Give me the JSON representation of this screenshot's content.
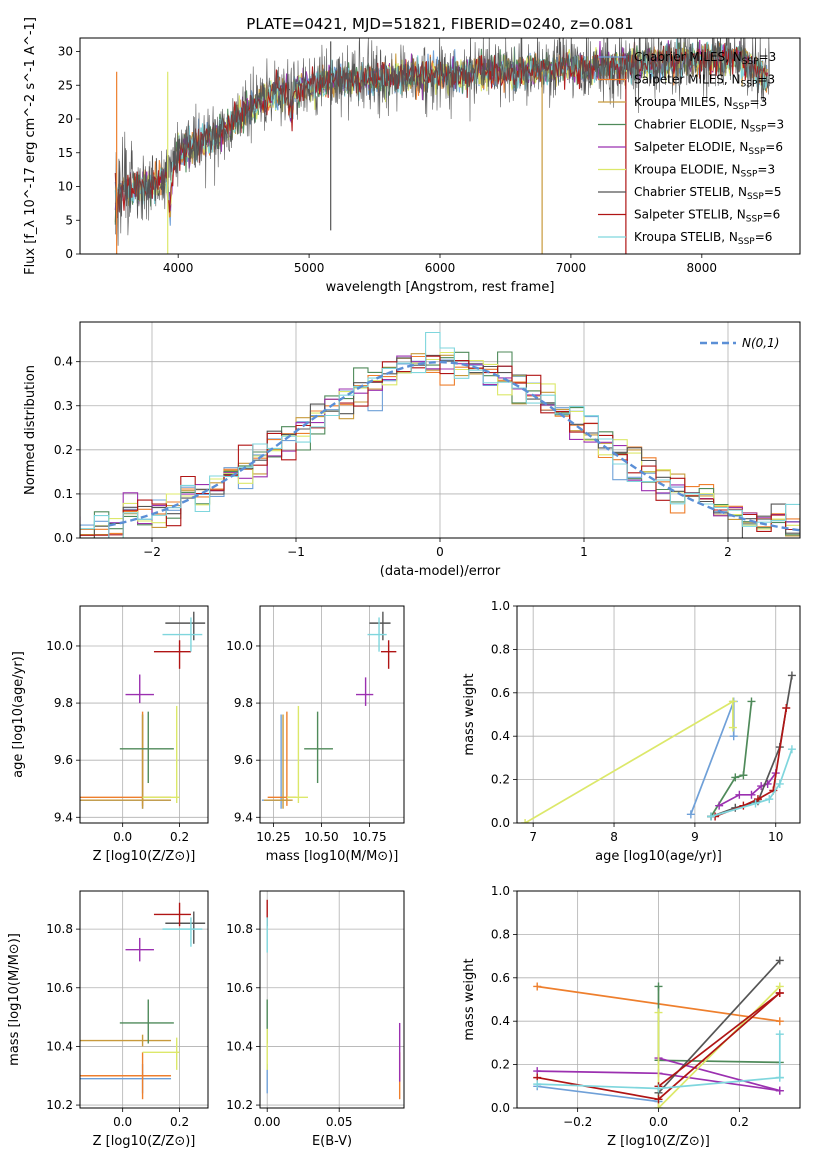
{
  "figure": {
    "title": "PLATE=0421, MJD=51821, FIBERID=0240, z=0.081"
  },
  "series_names": [
    "Chabrier MILES, N_SSP=3",
    "Salpeter MILES, N_SSP=3",
    "Kroupa MILES, N_SSP=3",
    "Chabrier ELODIE, N_SSP=3",
    "Salpeter ELODIE, N_SSP=6",
    "Kroupa ELODIE, N_SSP=3",
    "Chabrier STELIB, N_SSP=5",
    "Salpeter STELIB, N_SSP=6",
    "Kroupa STELIB, N_SSP=6"
  ],
  "series_colors": [
    "#6fa0d8",
    "#ee7f2d",
    "#c89a3c",
    "#4f8a5a",
    "#9b30b0",
    "#dce86a",
    "#555555",
    "#b01515",
    "#7fd6dd"
  ],
  "chart_data": [
    {
      "type": "line",
      "panel": "spectrum",
      "xlabel": "wavelength [Angstrom, rest frame]",
      "ylabel": "Flux [f_λ 10^-17 erg cm^-2 s^-1 A^-1]",
      "xlim": [
        3250,
        8750
      ],
      "ylim": [
        0,
        32
      ],
      "xticks": [
        "4000",
        "5000",
        "6000",
        "7000",
        "8000"
      ],
      "yticks": [
        "0",
        "5",
        "10",
        "15",
        "20",
        "25",
        "30"
      ],
      "continuum_x": [
        3500,
        3600,
        3800,
        3950,
        4000,
        4100,
        4300,
        4500,
        4700,
        4900,
        5100,
        5300,
        5500,
        5700,
        5900,
        6100,
        6300,
        6500,
        6700,
        6900,
        7100,
        7300,
        7500,
        7700,
        7900,
        8100,
        8300,
        8500
      ],
      "continuum_y": [
        8,
        9.5,
        10,
        12,
        15,
        16,
        17.5,
        21,
        23.5,
        24.5,
        25.5,
        26,
        26,
        26.5,
        26.5,
        26.5,
        27,
        27,
        27,
        27.5,
        27.5,
        28,
        28,
        28.5,
        29,
        29,
        29,
        26
      ],
      "grid": false,
      "legend": "top-right"
    },
    {
      "type": "line",
      "panel": "residual-histogram",
      "xlabel": "(data-model)/error",
      "ylabel": "Normed distribution",
      "xlim": [
        -2.5,
        2.5
      ],
      "ylim": [
        0,
        0.49
      ],
      "xticks": [
        "−2",
        "−1",
        "0",
        "1",
        "2"
      ],
      "yticks": [
        "0.0",
        "0.1",
        "0.2",
        "0.3",
        "0.4"
      ],
      "reference_curve": "N(0,1)",
      "bin_width": 0.1,
      "grid": true,
      "legend": "top-right"
    },
    {
      "type": "scatter",
      "panel": "age-vs-Z",
      "xlabel": "Z [log10(Z/Z⊙)]",
      "ylabel": "age [log10(age/yr)]",
      "xlim": [
        -0.15,
        0.3
      ],
      "ylim": [
        9.38,
        10.14
      ],
      "xticks": [
        "0.0",
        "0.2"
      ],
      "yticks": [
        "9.4",
        "9.6",
        "9.8",
        "10.0"
      ],
      "points": [
        {
          "s": 0,
          "x": 0.07,
          "y": 9.46,
          "xerr": [
            0.22,
            0.1
          ],
          "yerr": [
            0.03,
            0.3
          ]
        },
        {
          "s": 1,
          "x": 0.07,
          "y": 9.47,
          "xerr": [
            0.22,
            0.1
          ],
          "yerr": [
            0.03,
            0.3
          ]
        },
        {
          "s": 2,
          "x": 0.07,
          "y": 9.46,
          "xerr": [
            0.22,
            0.1
          ],
          "yerr": [
            0.03,
            0.3
          ]
        },
        {
          "s": 3,
          "x": 0.09,
          "y": 9.64,
          "xerr": [
            0.1,
            0.09
          ],
          "yerr": [
            0.12,
            0.13
          ]
        },
        {
          "s": 4,
          "x": 0.06,
          "y": 9.83,
          "xerr": [
            0.05,
            0.05
          ],
          "yerr": [
            0.03,
            0.07
          ]
        },
        {
          "s": 5,
          "x": 0.19,
          "y": 9.47,
          "xerr": [
            0.12,
            0.01
          ],
          "yerr": [
            0.02,
            0.32
          ]
        },
        {
          "s": 6,
          "x": 0.25,
          "y": 10.08,
          "xerr": [
            0.1,
            0.04
          ],
          "yerr": [
            0.06,
            0.04
          ]
        },
        {
          "s": 7,
          "x": 0.2,
          "y": 9.98,
          "xerr": [
            0.09,
            0.04
          ],
          "yerr": [
            0.06,
            0.04
          ]
        },
        {
          "s": 8,
          "x": 0.24,
          "y": 10.04,
          "xerr": [
            0.1,
            0.04
          ],
          "yerr": [
            0.06,
            0.06
          ]
        }
      ],
      "grid": true
    },
    {
      "type": "scatter",
      "panel": "age-vs-mass",
      "xlabel": "mass [log10(M/M⊙)]",
      "ylabel": "",
      "xlim": [
        10.18,
        10.93
      ],
      "ylim": [
        9.38,
        10.14
      ],
      "xticks": [
        "10.25",
        "10.50",
        "10.75"
      ],
      "yticks": [
        "9.4",
        "9.6",
        "9.8",
        "10.0"
      ],
      "points": [
        {
          "s": 0,
          "x": 10.29,
          "y": 9.46,
          "xerr": [
            0.1,
            0.05
          ],
          "yerr": [
            0.03,
            0.3
          ]
        },
        {
          "s": 1,
          "x": 10.32,
          "y": 9.47,
          "xerr": [
            0.1,
            0.05
          ],
          "yerr": [
            0.03,
            0.3
          ]
        },
        {
          "s": 2,
          "x": 10.3,
          "y": 9.46,
          "xerr": [
            0.1,
            0.05
          ],
          "yerr": [
            0.03,
            0.3
          ]
        },
        {
          "s": 3,
          "x": 10.48,
          "y": 9.64,
          "xerr": [
            0.07,
            0.08
          ],
          "yerr": [
            0.12,
            0.13
          ]
        },
        {
          "s": 4,
          "x": 10.73,
          "y": 9.83,
          "xerr": [
            0.05,
            0.04
          ],
          "yerr": [
            0.04,
            0.06
          ]
        },
        {
          "s": 5,
          "x": 10.38,
          "y": 9.47,
          "xerr": [
            0.06,
            0.05
          ],
          "yerr": [
            0.02,
            0.32
          ]
        },
        {
          "s": 6,
          "x": 10.82,
          "y": 10.08,
          "xerr": [
            0.07,
            0.04
          ],
          "yerr": [
            0.06,
            0.04
          ]
        },
        {
          "s": 7,
          "x": 10.85,
          "y": 9.98,
          "xerr": [
            0.04,
            0.04
          ],
          "yerr": [
            0.06,
            0.04
          ]
        },
        {
          "s": 8,
          "x": 10.8,
          "y": 10.04,
          "xerr": [
            0.06,
            0.04
          ],
          "yerr": [
            0.06,
            0.06
          ]
        }
      ],
      "grid": true
    },
    {
      "type": "line",
      "panel": "mass-weight-vs-age",
      "xlabel": "age [log10(age/yr)]",
      "ylabel": "mass weight",
      "xlim": [
        6.8,
        10.3
      ],
      "ylim": [
        0,
        1
      ],
      "xticks": [
        "7",
        "8",
        "9",
        "10"
      ],
      "yticks": [
        "0.0",
        "0.2",
        "0.4",
        "0.6",
        "0.8",
        "1.0"
      ],
      "lines": [
        {
          "s": 0,
          "x": [
            8.95,
            9.48,
            9.48
          ],
          "y": [
            0.04,
            0.56,
            0.4
          ]
        },
        {
          "s": 1,
          "x": 8.95,
          "y": 0.04,
          "note": "overlap"
        },
        {
          "s": 5,
          "x": [
            6.9,
            9.47,
            9.47
          ],
          "y": [
            0.0,
            0.56,
            0.44
          ]
        },
        {
          "s": 3,
          "x": [
            9.2,
            9.5,
            9.6,
            9.7
          ],
          "y": [
            0.03,
            0.21,
            0.22,
            0.56
          ]
        },
        {
          "s": 4,
          "x": [
            9.3,
            9.55,
            9.7,
            9.82,
            9.9,
            10.0
          ],
          "y": [
            0.08,
            0.13,
            0.13,
            0.17,
            0.18,
            0.23
          ]
        },
        {
          "s": 6,
          "x": [
            9.2,
            9.5,
            9.78,
            10.05,
            10.2
          ],
          "y": [
            0.03,
            0.07,
            0.1,
            0.35,
            0.68
          ]
        },
        {
          "s": 7,
          "x": [
            9.25,
            9.6,
            9.78,
            9.97,
            10.13
          ],
          "y": [
            0.03,
            0.08,
            0.11,
            0.15,
            0.53
          ]
        },
        {
          "s": 8,
          "x": [
            9.2,
            9.75,
            9.92,
            10.05,
            10.2
          ],
          "y": [
            0.03,
            0.09,
            0.11,
            0.18,
            0.34
          ]
        }
      ],
      "grid": true
    },
    {
      "type": "scatter",
      "panel": "mass-vs-Z",
      "xlabel": "Z [log10(Z/Z⊙)]",
      "ylabel": "mass [log10(M/M⊙)]",
      "xlim": [
        -0.15,
        0.3
      ],
      "ylim": [
        10.19,
        10.93
      ],
      "xticks": [
        "0.0",
        "0.2"
      ],
      "yticks": [
        "10.2",
        "10.4",
        "10.6",
        "10.8"
      ],
      "points": [
        {
          "s": 0,
          "x": 0.07,
          "y": 10.29,
          "xerr": [
            0.22,
            0.1
          ],
          "yerr": [
            0.05,
            0.05
          ]
        },
        {
          "s": 1,
          "x": 0.07,
          "y": 10.3,
          "xerr": [
            0.22,
            0.1
          ],
          "yerr": [
            0.08,
            0.08
          ]
        },
        {
          "s": 2,
          "x": 0.07,
          "y": 10.42,
          "xerr": [
            0.22,
            0.1
          ],
          "yerr": [
            0.02,
            0.02
          ]
        },
        {
          "s": 3,
          "x": 0.09,
          "y": 10.48,
          "xerr": [
            0.1,
            0.09
          ],
          "yerr": [
            0.07,
            0.08
          ]
        },
        {
          "s": 4,
          "x": 0.06,
          "y": 10.73,
          "xerr": [
            0.05,
            0.05
          ],
          "yerr": [
            0.04,
            0.04
          ]
        },
        {
          "s": 5,
          "x": 0.19,
          "y": 10.38,
          "xerr": [
            0.12,
            0.01
          ],
          "yerr": [
            0.06,
            0.05
          ]
        },
        {
          "s": 6,
          "x": 0.25,
          "y": 10.82,
          "xerr": [
            0.1,
            0.04
          ],
          "yerr": [
            0.07,
            0.04
          ]
        },
        {
          "s": 7,
          "x": 0.2,
          "y": 10.85,
          "xerr": [
            0.09,
            0.04
          ],
          "yerr": [
            0.04,
            0.04
          ]
        },
        {
          "s": 8,
          "x": 0.24,
          "y": 10.8,
          "xerr": [
            0.1,
            0.04
          ],
          "yerr": [
            0.06,
            0.04
          ]
        }
      ],
      "grid": true
    },
    {
      "type": "scatter",
      "panel": "mass-vs-EBV",
      "xlabel": "E(B-V)",
      "ylabel": "",
      "xlim": [
        -0.005,
        0.095
      ],
      "ylim": [
        10.19,
        10.93
      ],
      "xticks": [
        "0.00",
        "0.05"
      ],
      "yticks": [
        "10.2",
        "10.4",
        "10.6",
        "10.8"
      ],
      "points": [
        {
          "s": 0,
          "x": 0.0,
          "y": 10.29,
          "yerr": [
            0.05,
            0.05
          ]
        },
        {
          "s": 1,
          "x": 0.092,
          "y": 10.3,
          "yerr": [
            0.08,
            0.08
          ]
        },
        {
          "s": 3,
          "x": 0.0,
          "y": 10.48,
          "yerr": [
            0.07,
            0.08
          ]
        },
        {
          "s": 4,
          "x": 0.092,
          "y": 10.38,
          "yerr": [
            0.1,
            0.1
          ]
        },
        {
          "s": 5,
          "x": 0.0,
          "y": 10.38,
          "yerr": [
            0.06,
            0.08
          ]
        },
        {
          "s": 7,
          "x": 0.0,
          "y": 10.85,
          "yerr": [
            0.04,
            0.05
          ]
        },
        {
          "s": 8,
          "x": 0.0,
          "y": 10.78,
          "yerr": [
            0.06,
            0.06
          ]
        }
      ],
      "grid": true
    },
    {
      "type": "line",
      "panel": "mass-weight-vs-Z",
      "xlabel": "Z [log10(Z/Z⊙)]",
      "ylabel": "mass weight",
      "xlim": [
        -0.35,
        0.35
      ],
      "ylim": [
        0,
        1
      ],
      "xticks": [
        "−0.2",
        "0.0",
        "0.2"
      ],
      "yticks": [
        "0.0",
        "0.2",
        "0.4",
        "0.6",
        "0.8",
        "1.0"
      ],
      "lines": [
        {
          "s": 1,
          "x": [
            -0.3,
            0.3
          ],
          "y": [
            0.56,
            0.4
          ]
        },
        {
          "s": 0,
          "x": [
            -0.3,
            0.0
          ],
          "y": [
            0.1,
            0.03
          ]
        },
        {
          "s": 3,
          "x": [
            0.0,
            0.0,
            0.3
          ],
          "y": [
            0.56,
            0.22,
            0.21
          ]
        },
        {
          "s": 4,
          "x": [
            -0.3,
            0.0,
            0.3
          ],
          "y": [
            0.17,
            0.16,
            0.08
          ]
        },
        {
          "s": 4,
          "x": [
            0.0,
            0.3
          ],
          "y": [
            0.23,
            0.08
          ]
        },
        {
          "s": 5,
          "x": [
            0.0,
            0.0,
            0.3
          ],
          "y": [
            0.44,
            0.0,
            0.56
          ]
        },
        {
          "s": 6,
          "x": [
            0.0,
            0.3
          ],
          "y": [
            0.07,
            0.68
          ]
        },
        {
          "s": 7,
          "x": [
            -0.3,
            0.0,
            0.3
          ],
          "y": [
            0.14,
            0.04,
            0.53
          ]
        },
        {
          "s": 7,
          "x": [
            0.0,
            0.3
          ],
          "y": [
            0.1,
            0.53
          ]
        },
        {
          "s": 8,
          "x": [
            -0.3,
            0.0,
            0.3
          ],
          "y": [
            0.11,
            0.09,
            0.14
          ]
        },
        {
          "s": 8,
          "x": [
            0.3,
            0.3
          ],
          "y": [
            0.34,
            0.14
          ]
        }
      ],
      "grid": true
    }
  ],
  "legend_ref": "N(0,1)"
}
